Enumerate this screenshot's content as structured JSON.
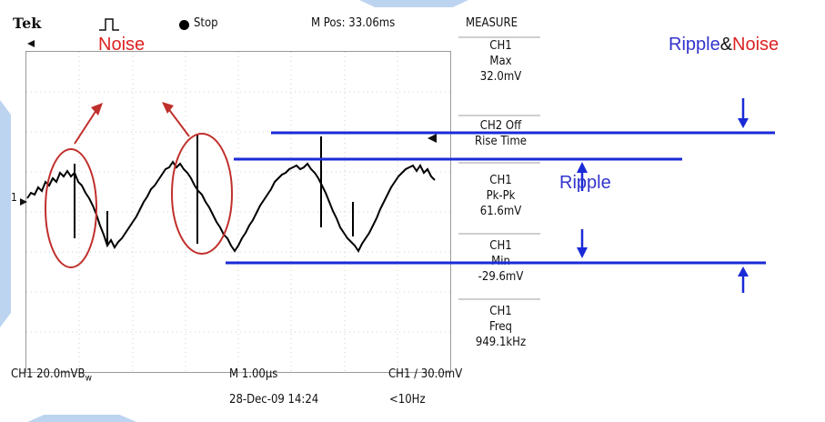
{
  "header": {
    "brand": "Tek",
    "trigger_state": "Stop",
    "m_pos": "M Pos: 33.06ms",
    "menu_title": "MEASURE"
  },
  "measure_panel": {
    "items": [
      {
        "source": "CH1",
        "name": "Max",
        "value": "32.0mV"
      },
      {
        "source": "CH2 Off",
        "name": "Rise Time",
        "value": ""
      },
      {
        "source": "CH1",
        "name": "Pk-Pk",
        "value": "61.6mV"
      },
      {
        "source": "CH1",
        "name": "Min",
        "value": "-29.6mV"
      },
      {
        "source": "CH1",
        "name": "Freq",
        "value": "949.1kHz"
      }
    ]
  },
  "footer": {
    "ch1_scale": "CH1  20.0mVB",
    "bw_suffix": "w",
    "timebase": "M 1.00µs",
    "trigger": "CH1  ∕  30.0mV",
    "date": "28-Dec-09 14:24",
    "freq": "<10Hz"
  },
  "annotations": {
    "noise_label": "Noise",
    "ripple_label": "Ripple",
    "ripple_noise_ripple": "Ripple",
    "ripple_noise_amp": "&",
    "ripple_noise_noise": "Noise",
    "channel_marker": "1"
  },
  "colors": {
    "annotation_red": "#dd2222",
    "annotation_blue": "#3333cc",
    "line_blue": "#1a2ad8",
    "ellipse_red": "#c0302c",
    "trace": "#000000"
  }
}
